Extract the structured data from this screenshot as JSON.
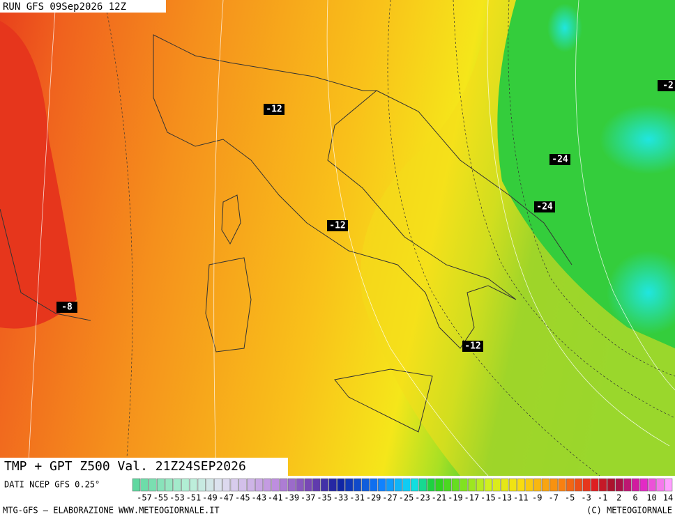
{
  "header": {
    "run": "RUN GFS 09Sep2026 12Z"
  },
  "map": {
    "isotherm_labels": [
      {
        "text": "-12"
      },
      {
        "text": "-12"
      },
      {
        "text": "-12"
      },
      {
        "text": "-24"
      },
      {
        "text": "-24"
      },
      {
        "text": "-8"
      },
      {
        "text": "-2"
      }
    ]
  },
  "title": "TMP + GPT Z500 Val. 21Z24SEP2026",
  "source": "DATI NCEP GFS 0.25°",
  "legend": {
    "labels": [
      "-57",
      "-55",
      "-53",
      "-51",
      "-49",
      "-47",
      "-45",
      "-43",
      "-41",
      "-39",
      "-37",
      "-35",
      "-33",
      "-31",
      "-29",
      "-27",
      "-25",
      "-23",
      "-21",
      "-19",
      "-17",
      "-15",
      "-13",
      "-11",
      "-9",
      "-7",
      "-5",
      "-3",
      "-1",
      "2",
      "6",
      "10",
      "14"
    ]
  },
  "footer": {
    "left": "MTG-GFS – ELABORAZIONE WWW.METEOGIORNALE.IT",
    "right": "(C) METEOGIORNALE"
  }
}
